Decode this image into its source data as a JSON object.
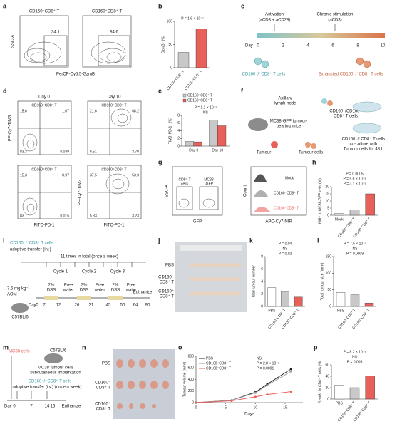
{
  "figure": {
    "panels": [
      "a",
      "b",
      "c",
      "d",
      "e",
      "f",
      "g",
      "h",
      "i",
      "j",
      "k",
      "l",
      "m",
      "n",
      "o",
      "p"
    ],
    "a": {
      "plots": [
        "CD160⁻CD8⁺ T",
        "CD160⁺CD8⁺ T"
      ],
      "gates": [
        "34.1",
        "84.6"
      ],
      "ylabel": "SSC-A",
      "xlabel": "PerCP-Cy5.5-GzmB"
    },
    "c": {
      "steps": [
        "Activation",
        "(aCD3 + aCD28)",
        "Chronic stimulation",
        "(aCD3)"
      ],
      "day": "Day",
      "days": [
        "0",
        "2",
        "4",
        "6",
        "8",
        "10"
      ],
      "left": "CD160⁻/⁺CD8⁺ T cells",
      "right": "Exhausted CD160⁻/⁺CD8⁺ T cells"
    },
    "d": {
      "cols": [
        "Day 0",
        "Day 10"
      ],
      "rows": [
        "CD160⁻CD8⁺ T",
        "CD160⁺CD8⁺ T"
      ],
      "quadrants": [
        [
          [
            "15.6",
            "1.07",
            "83.3",
            "0.049"
          ],
          [
            "21.6",
            "68.2",
            "6.51",
            "3.70"
          ]
        ],
        [
          [
            "15.3",
            "0.97",
            "83.7",
            "0.015"
          ],
          [
            "37.5",
            "53.9",
            "5.33",
            "3.23"
          ]
        ]
      ],
      "ylabel": "PE-Cy7-TIM3",
      "xlabel": "FITC-PD-1"
    },
    "f": {
      "texts": [
        "Axillary",
        "lymph node",
        "CD160⁻/CD160⁺",
        "CD8⁺ T cells",
        "MC38-GFP tumour-",
        "bearing mice",
        "Tumour",
        "Tumour cells",
        "CD160⁻/⁺CD8⁺ T cells",
        "co-culture with",
        "Tumour cells for 48 h"
      ]
    },
    "g": {
      "gates": [
        "CD8⁺ T",
        "cells",
        "MC38",
        "-GFP"
      ],
      "ylabel": "SSC-A",
      "xlabel": "GFP",
      "hist": [
        "Mock",
        "CD160⁻CD8⁺ T",
        "CD160⁺CD8⁺ T"
      ],
      "hist_ylabel": "Count",
      "hist_xlabel": "APC-Cy7-NIR"
    },
    "i": {
      "cells": "CD160⁻/⁺CD8⁺ T cells",
      "transfer": "adoptive transfer (i.v.)",
      "times": "11 times in total (once a week)",
      "cycles": [
        "Cycle 1",
        "Cycle 2",
        "Cycle 3"
      ],
      "aom": [
        "7.5 mg kg⁻¹",
        "AOM"
      ],
      "phases": [
        "2%",
        "DSS",
        "Free",
        "water",
        "2%",
        "DSS",
        "Free",
        "water",
        "2%",
        "DSS",
        "Free",
        "water"
      ],
      "days": [
        "0",
        "7",
        "12",
        "26",
        "31",
        "45",
        "50",
        "64",
        "90"
      ],
      "end": "Euthanize",
      "mouse": "C57BL/6",
      "day": "Day"
    },
    "j": {
      "rows": [
        "PBS",
        "CD160⁻",
        "CD8⁺ T",
        "CD160⁺",
        "CD8⁺ T"
      ]
    },
    "m": {
      "cells": "MC38 cells",
      "mouse": "C57BL/6",
      "implant": [
        "MC38 tumour cells",
        "subcutaneous implantation"
      ],
      "tcells": "CD160⁻/⁺CD8⁺ T cells",
      "transfer": "adoptive transfer (i.v.) (once a week)",
      "day": "Day",
      "days": [
        "0",
        "7",
        "14",
        "16"
      ],
      "end": "Euthanize"
    },
    "n": {
      "rows": [
        "PBS",
        "CD160⁻",
        "CD8⁺ T",
        "CD160⁺",
        "CD8⁺ T"
      ]
    }
  },
  "chart_data": [
    {
      "type": "bar",
      "categories": [
        "CD160⁻CD8⁺ T",
        "CD160⁺CD8⁺ T"
      ],
      "values": [
        33,
        84
      ],
      "colors": [
        "#c8c8c8",
        "#e8605a"
      ],
      "ylim": [
        0,
        100
      ],
      "yticks": [
        0,
        50,
        100
      ],
      "ylabel": "GzmB⁺ (%)",
      "annotations": [
        "P = 1.6 × 10⁻⁷"
      ]
    },
    {
      "type": "bar",
      "categories": [
        "Day 0",
        "Day 10"
      ],
      "series": [
        {
          "name": "CD160⁻CD8⁺ T",
          "color": "#c8c8c8",
          "values": [
            1.2,
            6.8
          ]
        },
        {
          "name": "CD160⁺CD8⁺ T",
          "color": "#e8605a",
          "values": [
            1.1,
            5.3
          ]
        }
      ],
      "ylim": [
        0,
        8
      ],
      "yticks": [
        0,
        2,
        4,
        6,
        8
      ],
      "ylabel": "TIM3⁺PD-1⁺ (%)",
      "annotations": [
        "NS",
        "P = 1.1 × 10⁻⁵"
      ]
    },
    {
      "type": "bar",
      "categories": [
        "Mock",
        "CD160⁻CD8⁺ T",
        "CD160⁺CD8⁺ T"
      ],
      "values": [
        1.2,
        3.8,
        15
      ],
      "colors": [
        "#ffffff",
        "#c8c8c8",
        "#e8605a"
      ],
      "ylim": [
        0,
        20
      ],
      "yticks": [
        0,
        5,
        10,
        15,
        20
      ],
      "ylabel": "NIR⁺ in MC38-GFP cells (%)",
      "annotations": [
        "P = 3.1 × 10⁻⁵",
        "P = 5.6 × 10⁻⁸",
        "P = 0.0005"
      ]
    },
    {
      "type": "bar",
      "categories": [
        "PBS",
        "CD160⁻CD8⁺ T",
        "CD160⁺CD8⁺ T"
      ],
      "values": [
        3,
        2.4,
        1.5
      ],
      "colors": [
        "#ffffff",
        "#c8c8c8",
        "#e8605a"
      ],
      "ylim": [
        0,
        8
      ],
      "yticks": [
        0,
        2,
        4,
        6,
        8
      ],
      "ylabel": "Total tumour number",
      "annotations": [
        "P = 0.02",
        "NS",
        "P = 0.04"
      ]
    },
    {
      "type": "bar",
      "categories": [
        "PBS",
        "CD160⁻CD8⁺ T",
        "CD160⁺CD8⁺ T"
      ],
      "values": [
        42,
        35,
        10
      ],
      "colors": [
        "#ffffff",
        "#c8c8c8",
        "#e8605a"
      ],
      "ylim": [
        0,
        150
      ],
      "yticks": [
        0,
        50,
        100,
        150
      ],
      "ylabel": "Total tumour size (mm³)",
      "annotations": [
        "P = 0.0009",
        "NS",
        "P = 7.5 × 10⁻⁵"
      ]
    },
    {
      "type": "bar",
      "categories": [
        "PBS",
        "CD160⁻CD8⁺ T",
        "CD160⁺CD8⁺ T"
      ],
      "values": [
        24,
        20,
        41
      ],
      "colors": [
        "#ffffff",
        "#c8c8c8",
        "#e8605a"
      ],
      "ylim": [
        0,
        60
      ],
      "yticks": [
        0,
        20,
        40,
        60
      ],
      "ylabel": "GzmB⁺ in CD8⁺ T cells (%)",
      "annotations": [
        "P = 0.005",
        "NS",
        "P = 8.2 × 10⁻⁵"
      ]
    },
    {
      "type": "line",
      "x": [
        0,
        6,
        10,
        12,
        16
      ],
      "series": [
        {
          "name": "PBS",
          "color": "#222222",
          "values": [
            0,
            40,
            180,
            320,
            580
          ]
        },
        {
          "name": "CD160⁻CD8⁺ T",
          "color": "#9a9a9a",
          "values": [
            0,
            40,
            170,
            300,
            540
          ]
        },
        {
          "name": "CD160⁺CD8⁺ T",
          "color": "#e8605a",
          "values": [
            0,
            30,
            100,
            140,
            190
          ]
        }
      ],
      "xlim": [
        0,
        18
      ],
      "xticks": [
        0,
        5,
        10,
        15
      ],
      "ylim": [
        0,
        800
      ],
      "yticks": [
        0,
        200,
        400,
        600,
        800
      ],
      "xlabel": "Days",
      "ylabel": "Tumour volume (mm³)",
      "legend": "upper left",
      "annotations": [
        "NS",
        "P = 2.8 × 10⁻⁵",
        "P = 0.0001"
      ]
    }
  ]
}
